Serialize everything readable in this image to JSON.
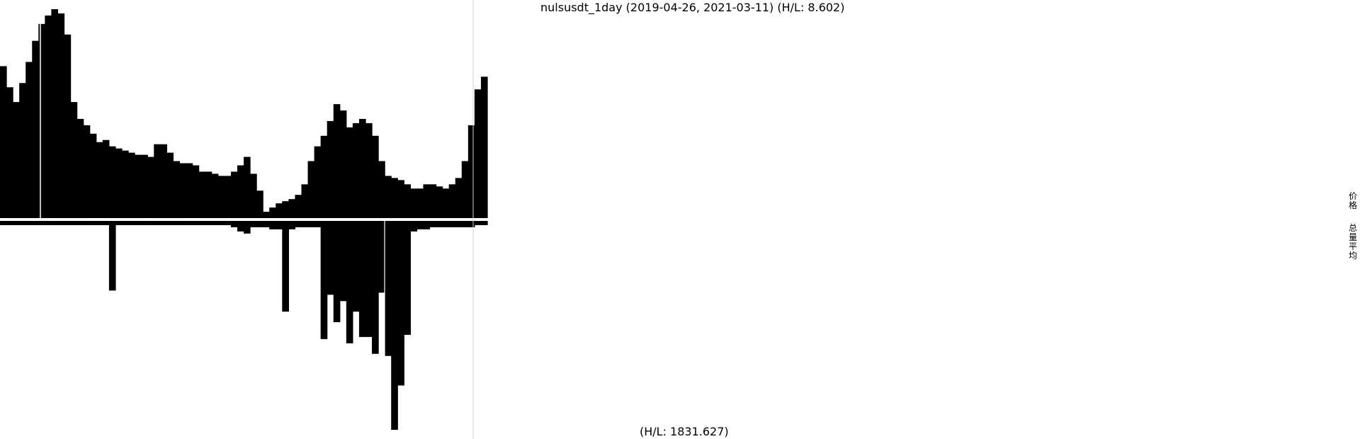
{
  "chart_data": {
    "type": "bar",
    "title": "nulsusdt_1day (2019-04-26, 2021-03-11) (H/L: 8.602)",
    "symbol": "nulsusdt",
    "interval": "1day",
    "date_start": "2019-04-26",
    "date_end": "2021-03-11",
    "legend": [
      "价格",
      "总量平均"
    ],
    "price_panel": {
      "series_name": "价格",
      "hl_ratio": 8.602,
      "values": [
        0.72,
        0.62,
        0.55,
        0.64,
        0.74,
        0.84,
        0.92,
        0.96,
        0.99,
        0.97,
        0.87,
        0.55,
        0.47,
        0.44,
        0.4,
        0.36,
        0.37,
        0.34,
        0.33,
        0.32,
        0.31,
        0.3,
        0.3,
        0.29,
        0.35,
        0.35,
        0.31,
        0.27,
        0.26,
        0.26,
        0.25,
        0.22,
        0.22,
        0.21,
        0.2,
        0.2,
        0.22,
        0.25,
        0.29,
        0.21,
        0.13,
        0.03,
        0.05,
        0.07,
        0.08,
        0.09,
        0.11,
        0.16,
        0.27,
        0.34,
        0.39,
        0.46,
        0.54,
        0.51,
        0.43,
        0.45,
        0.47,
        0.45,
        0.39,
        0.27,
        0.2,
        0.19,
        0.18,
        0.16,
        0.14,
        0.14,
        0.16,
        0.16,
        0.15,
        0.14,
        0.16,
        0.19,
        0.27,
        0.44,
        0.61,
        0.67
      ]
    },
    "volume_panel": {
      "series_name": "总量平均",
      "hl_ratio": 1831.627,
      "label": "(H/L: 1831.627)",
      "values": [
        0.02,
        0.02,
        0.02,
        0.02,
        0.02,
        0.02,
        0.02,
        0.02,
        0.02,
        0.02,
        0.02,
        0.02,
        0.02,
        0.02,
        0.02,
        0.02,
        0.02,
        0.33,
        0.02,
        0.02,
        0.02,
        0.02,
        0.02,
        0.02,
        0.02,
        0.02,
        0.02,
        0.02,
        0.02,
        0.02,
        0.02,
        0.02,
        0.02,
        0.02,
        0.02,
        0.02,
        0.03,
        0.05,
        0.06,
        0.03,
        0.03,
        0.03,
        0.04,
        0.04,
        0.43,
        0.04,
        0.03,
        0.03,
        0.03,
        0.03,
        0.56,
        0.35,
        0.48,
        0.38,
        0.58,
        0.43,
        0.55,
        0.55,
        0.63,
        0.34,
        0.64,
        0.99,
        0.78,
        0.54,
        0.05,
        0.04,
        0.04,
        0.03,
        0.03,
        0.03,
        0.03,
        0.03,
        0.03,
        0.03,
        0.02,
        0.02
      ]
    }
  }
}
